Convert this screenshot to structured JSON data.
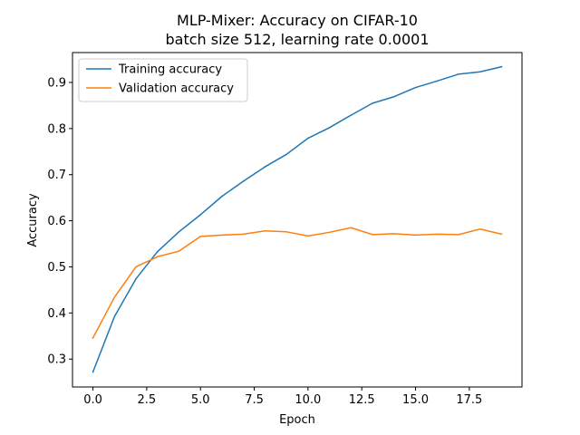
{
  "chart_data": {
    "type": "line",
    "title": "MLP-Mixer: Accuracy on CIFAR-10",
    "subtitle": "batch size 512, learning rate 0.0001",
    "xlabel": "Epoch",
    "ylabel": "Accuracy",
    "xlim": [
      -0.95,
      19.95
    ],
    "ylim": [
      0.2395,
      0.9648
    ],
    "x_ticks": [
      0,
      2.5,
      5,
      7.5,
      10,
      12.5,
      15,
      17.5
    ],
    "x_tick_labels": [
      "0.0",
      "2.5",
      "5.0",
      "7.5",
      "10.0",
      "12.5",
      "15.0",
      "17.5"
    ],
    "y_ticks": [
      0.3,
      0.4,
      0.5,
      0.6,
      0.7,
      0.8,
      0.9
    ],
    "y_tick_labels": [
      "0.3",
      "0.4",
      "0.5",
      "0.6",
      "0.7",
      "0.8",
      "0.9"
    ],
    "grid": false,
    "legend_position": "top-left",
    "x": [
      0,
      1,
      2,
      3,
      4,
      5,
      6,
      7,
      8,
      9,
      10,
      11,
      12,
      13,
      14,
      15,
      16,
      17,
      18,
      19
    ],
    "series": [
      {
        "name": "Training accuracy",
        "color": "#1f77b4",
        "values": [
          0.272,
          0.392,
          0.474,
          0.533,
          0.576,
          0.613,
          0.653,
          0.686,
          0.717,
          0.744,
          0.779,
          0.802,
          0.829,
          0.855,
          0.869,
          0.889,
          0.903,
          0.918,
          0.923,
          0.934
        ]
      },
      {
        "name": "Validation accuracy",
        "color": "#ff7f0e",
        "values": [
          0.346,
          0.434,
          0.5,
          0.522,
          0.534,
          0.566,
          0.569,
          0.571,
          0.578,
          0.576,
          0.567,
          0.575,
          0.585,
          0.57,
          0.572,
          0.569,
          0.571,
          0.57,
          0.582,
          0.571
        ]
      }
    ]
  }
}
